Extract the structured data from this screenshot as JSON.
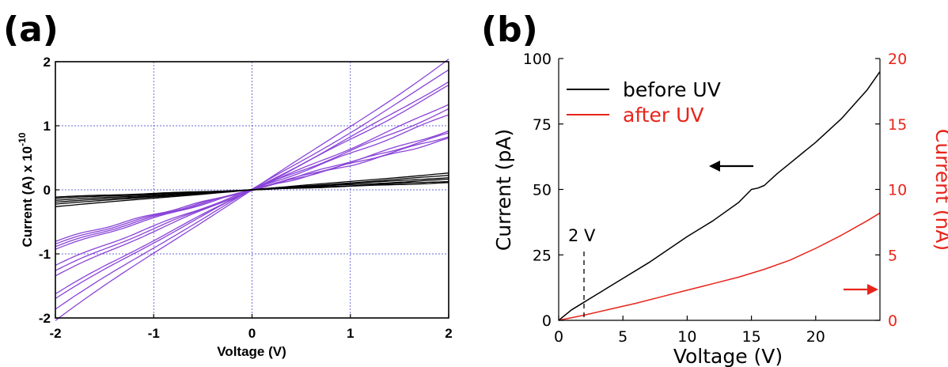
{
  "chart_data": [
    {
      "panel_label": "(a)",
      "type": "line",
      "xlabel": "Voltage (V)",
      "ylabel": "Current (A) x 10",
      "ylabel_exponent": "-10",
      "xlim": [
        -2,
        2
      ],
      "ylim": [
        -2,
        2
      ],
      "xticks": [
        "-2",
        "-1",
        "0",
        "1",
        "2"
      ],
      "yticks": [
        "-2",
        "-1",
        "0",
        "1",
        "2"
      ],
      "grid": true,
      "colors": {
        "purple": "#8a44d8",
        "black": "#000000",
        "grid": "#3333cc"
      },
      "series_groups": [
        {
          "color": "purple",
          "endpoint_values_at_2V": [
            1.95,
            1.78,
            1.62,
            1.55,
            1.28,
            1.2,
            1.12,
            0.88,
            0.84,
            0.8,
            0.76
          ]
        },
        {
          "color": "black",
          "endpoint_values_at_2V": [
            0.26,
            0.22,
            0.19,
            0.16,
            0.13,
            0.11
          ]
        }
      ]
    },
    {
      "panel_label": "(b)",
      "type": "line",
      "xlabel": "Voltage (V)",
      "ylabel": "Current (pA)",
      "ylabel_right": "Current (nA)",
      "xlim": [
        0,
        25
      ],
      "ylim": [
        0,
        100
      ],
      "ylim_right": [
        0,
        20
      ],
      "xticks": [
        "0",
        "5",
        "10",
        "15",
        "20"
      ],
      "yticks": [
        "0",
        "25",
        "50",
        "75",
        "100"
      ],
      "yticks_right": [
        "0",
        "5",
        "10",
        "15",
        "20"
      ],
      "colors": {
        "before": "#000000",
        "after": "#e8241a"
      },
      "series": [
        {
          "name": "before UV",
          "axis": "left",
          "x": [
            0,
            1,
            2,
            3,
            5,
            7,
            10,
            12,
            14,
            14.6,
            15,
            15.5,
            16,
            17,
            18,
            20,
            22,
            24,
            25
          ],
          "values": [
            0,
            4,
            7,
            10,
            16,
            22,
            32,
            38,
            45,
            48,
            50,
            50.5,
            51.5,
            56,
            60,
            68,
            77,
            88,
            95
          ]
        },
        {
          "name": "after UV",
          "axis": "right",
          "x": [
            0,
            2,
            4,
            6,
            8,
            10,
            12,
            14,
            16,
            18,
            20,
            22,
            24,
            25
          ],
          "values": [
            0,
            0.4,
            0.85,
            1.3,
            1.8,
            2.3,
            2.8,
            3.3,
            3.9,
            4.6,
            5.5,
            6.5,
            7.6,
            8.2
          ]
        }
      ],
      "annotations": [
        {
          "text": "2 V",
          "x": 2,
          "style": "dashed vertical line"
        },
        {
          "text": "",
          "points_to": "left axis",
          "color": "black",
          "near_x": 14.5,
          "near_y": 50
        },
        {
          "text": "",
          "points_to": "right axis",
          "color": "red",
          "near_x": 23.5,
          "near_y_right": 3
        }
      ],
      "legend": "top-left"
    }
  ]
}
